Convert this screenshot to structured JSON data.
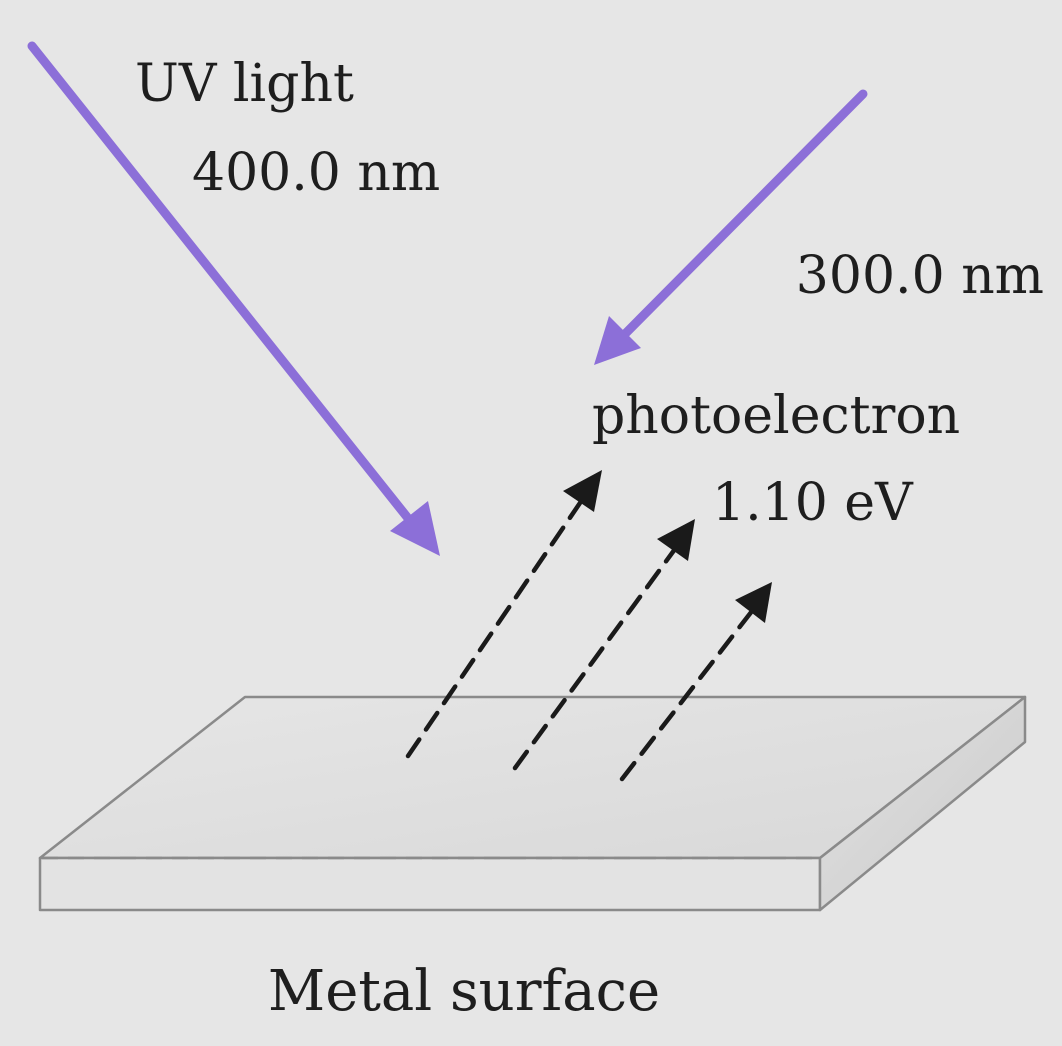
{
  "labels": {
    "light_title": "UV light",
    "wavelength_1": "400.0 nm",
    "wavelength_2": "300.0 nm",
    "electron": "photoelectron",
    "energy": "1.10 eV",
    "surface": "Metal surface"
  },
  "colors": {
    "background": "#e6e6e6",
    "light_ray": "#8c6fd8",
    "electron_path": "#1a1a1a",
    "metal_top": "#dddddd",
    "metal_front": "#e3e3e3",
    "metal_side": "#d0d0d0",
    "metal_edge": "#8a8a8a"
  },
  "icons": {
    "light_ray": "arrow-icon",
    "electron_path": "dashed-arrow-icon"
  }
}
